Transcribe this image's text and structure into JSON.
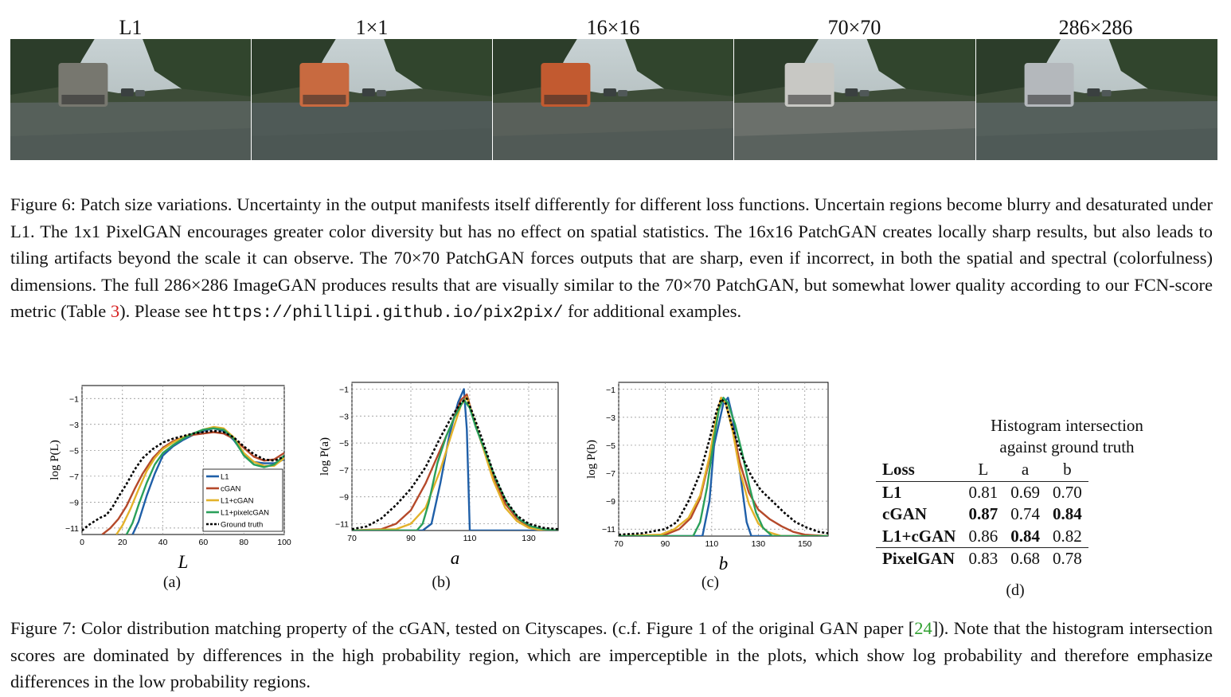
{
  "fig6": {
    "panels": [
      {
        "label": "L1",
        "tint": "#56605a",
        "truck": "#77776f"
      },
      {
        "label": "1×1",
        "tint": "#4f5a57",
        "truck": "#c86a40"
      },
      {
        "label": "16×16",
        "tint": "#59605a",
        "truck": "#c25a30"
      },
      {
        "label": "70×70",
        "tint": "#6b706b",
        "truck": "#c8c8c4"
      },
      {
        "label": "286×286",
        "tint": "#55605c",
        "truck": "#b4b8bc"
      }
    ],
    "caption_before_link": "Figure 6: Patch size variations. Uncertainty in the output manifests itself differently for different loss functions. Uncertain regions become blurry and desaturated under L1. The 1x1 PixelGAN encourages greater color diversity but has no effect on spatial statistics. The 16x16 PatchGAN creates locally sharp results, but also leads to tiling artifacts beyond the scale it can observe. The 70×70 PatchGAN forces outputs that are sharp, even if incorrect, in both the spatial and spectral (colorfulness) dimensions. The full 286×286 ImageGAN produces results that are visually similar to the 70×70 PatchGAN, but somewhat lower quality according to our FCN-score metric (Table ",
    "table_ref": "3",
    "caption_mid": "). Please see ",
    "link": "https://phillipi.github.io/pix2pix/",
    "caption_after_link": " for additional examples."
  },
  "chart_data": [
    {
      "type": "line",
      "sublabel": "(a)",
      "xlabel": "L",
      "ylabel": "log P(L)",
      "xlim": [
        0,
        100
      ],
      "ylim": [
        -11.5,
        0
      ],
      "xticks": [
        0,
        20,
        40,
        60,
        80,
        100
      ],
      "yticks": [
        -1,
        -3,
        -5,
        -7,
        -9,
        -11
      ],
      "grid": true,
      "legend_placement": "bottom-right",
      "legend": [
        "L1",
        "cGAN",
        "L1+cGAN",
        "L1+pixelcGAN",
        "Ground truth"
      ],
      "series": [
        {
          "name": "L1",
          "color": "#1f5fa8",
          "x": [
            25,
            28,
            32,
            36,
            40,
            45,
            50,
            55,
            60,
            65,
            70,
            75,
            80,
            85,
            90,
            95,
            100
          ],
          "y": [
            -11.5,
            -10.5,
            -8.5,
            -6.8,
            -5.4,
            -4.7,
            -4.2,
            -3.8,
            -3.5,
            -3.3,
            -3.5,
            -4.2,
            -5.3,
            -5.9,
            -6.0,
            -6.0,
            -5.7
          ]
        },
        {
          "name": "cGAN",
          "color": "#b5492a",
          "x": [
            10,
            14,
            18,
            22,
            26,
            30,
            35,
            40,
            45,
            50,
            55,
            60,
            65,
            70,
            75,
            80,
            85,
            90,
            95,
            100
          ],
          "y": [
            -11.5,
            -11.0,
            -10.3,
            -9.3,
            -8.0,
            -6.8,
            -5.6,
            -4.8,
            -4.3,
            -4.0,
            -3.8,
            -3.7,
            -3.6,
            -3.7,
            -4.1,
            -4.8,
            -5.5,
            -5.8,
            -5.7,
            -5.2
          ]
        },
        {
          "name": "L1+cGAN",
          "color": "#e3b22a",
          "x": [
            17,
            20,
            24,
            28,
            32,
            36,
            40,
            45,
            50,
            55,
            60,
            65,
            70,
            75,
            80,
            85,
            90,
            95,
            100
          ],
          "y": [
            -11.5,
            -10.8,
            -9.5,
            -8.0,
            -6.6,
            -5.6,
            -4.9,
            -4.4,
            -4.0,
            -3.7,
            -3.4,
            -3.2,
            -3.3,
            -4.0,
            -5.2,
            -5.9,
            -6.2,
            -6.2,
            -5.6
          ]
        },
        {
          "name": "L1+pixelcGAN",
          "color": "#2aa05a",
          "x": [
            22,
            25,
            28,
            32,
            36,
            40,
            45,
            50,
            55,
            60,
            65,
            70,
            75,
            80,
            85,
            90,
            95,
            100
          ],
          "y": [
            -11.5,
            -10.6,
            -9.2,
            -7.5,
            -6.1,
            -5.2,
            -4.6,
            -4.1,
            -3.7,
            -3.4,
            -3.3,
            -3.4,
            -4.1,
            -5.4,
            -6.1,
            -6.3,
            -6.1,
            -5.4
          ]
        },
        {
          "name": "Ground truth",
          "color": "#000000",
          "dashed": true,
          "x": [
            0,
            3,
            6,
            9,
            12,
            15,
            18,
            22,
            26,
            30,
            35,
            40,
            45,
            50,
            55,
            60,
            65,
            70,
            75,
            80,
            85,
            90,
            95,
            100
          ],
          "y": [
            -11.2,
            -10.8,
            -10.5,
            -10.2,
            -10.0,
            -9.4,
            -8.6,
            -7.6,
            -6.5,
            -5.6,
            -4.9,
            -4.4,
            -4.1,
            -3.9,
            -3.7,
            -3.6,
            -3.5,
            -3.6,
            -4.0,
            -4.7,
            -5.3,
            -5.7,
            -5.8,
            -5.5
          ]
        }
      ]
    },
    {
      "type": "line",
      "sublabel": "(b)",
      "xlabel": "a",
      "ylabel": "log P(a)",
      "xlim": [
        70,
        140
      ],
      "ylim": [
        -11.5,
        -0.5
      ],
      "xticks": [
        70,
        90,
        110,
        130
      ],
      "yticks": [
        -1,
        -3,
        -5,
        -7,
        -9,
        -11
      ],
      "grid": true,
      "series": [
        {
          "name": "L1",
          "color": "#1f5fa8",
          "x": [
            70,
            94,
            97,
            100,
            103,
            106,
            108,
            109,
            110,
            111,
            140
          ],
          "y": [
            -11.5,
            -11.5,
            -11.0,
            -8.0,
            -4.5,
            -2.0,
            -1.0,
            -4.0,
            -11.5,
            -11.5,
            -11.5
          ]
        },
        {
          "name": "cGAN",
          "color": "#b5492a",
          "x": [
            70,
            80,
            85,
            90,
            95,
            100,
            104,
            107,
            109,
            111,
            114,
            118,
            122,
            126,
            130,
            135,
            140
          ],
          "y": [
            -11.5,
            -11.4,
            -11.0,
            -10.0,
            -8.0,
            -5.5,
            -3.5,
            -1.8,
            -1.4,
            -3.0,
            -5.0,
            -7.5,
            -9.5,
            -10.6,
            -11.2,
            -11.4,
            -11.5
          ]
        },
        {
          "name": "L1+cGAN",
          "color": "#e3b22a",
          "x": [
            70,
            85,
            90,
            95,
            100,
            104,
            107,
            109,
            111,
            114,
            118,
            122,
            126,
            130,
            135,
            140
          ],
          "y": [
            -11.5,
            -11.4,
            -11.0,
            -9.8,
            -7.0,
            -4.2,
            -2.2,
            -1.6,
            -3.0,
            -5.0,
            -7.8,
            -9.8,
            -10.8,
            -11.3,
            -11.5,
            -11.5
          ]
        },
        {
          "name": "L1+pixelcGAN",
          "color": "#2aa05a",
          "x": [
            70,
            92,
            94,
            96,
            99,
            102,
            105,
            108,
            110,
            112,
            115,
            119,
            123,
            127,
            131,
            135,
            140
          ],
          "y": [
            -11.5,
            -11.5,
            -11.0,
            -9.5,
            -6.5,
            -4.5,
            -3.0,
            -1.8,
            -2.4,
            -3.8,
            -5.5,
            -7.8,
            -9.6,
            -10.7,
            -11.2,
            -11.4,
            -11.5
          ]
        },
        {
          "name": "Ground truth",
          "color": "#000000",
          "dashed": true,
          "x": [
            70,
            75,
            80,
            85,
            90,
            95,
            100,
            104,
            107,
            109,
            111,
            114,
            118,
            122,
            126,
            130,
            135,
            140
          ],
          "y": [
            -11.4,
            -11.2,
            -10.6,
            -9.6,
            -8.4,
            -6.8,
            -4.6,
            -3.0,
            -2.0,
            -1.7,
            -2.8,
            -4.6,
            -7.2,
            -9.2,
            -10.4,
            -11.0,
            -11.3,
            -11.4
          ]
        }
      ]
    },
    {
      "type": "line",
      "sublabel": "(c)",
      "xlabel": "b",
      "ylabel": "log P(b)",
      "xlim": [
        70,
        160
      ],
      "ylim": [
        -11.5,
        -0.5
      ],
      "xticks": [
        70,
        90,
        110,
        130,
        150
      ],
      "yticks": [
        -1,
        -3,
        -5,
        -7,
        -9,
        -11
      ],
      "grid": true,
      "series": [
        {
          "name": "L1",
          "color": "#1f5fa8",
          "x": [
            70,
            106,
            109,
            111,
            113,
            115,
            117,
            119,
            121,
            123,
            125,
            127,
            160
          ],
          "y": [
            -11.5,
            -11.5,
            -9.0,
            -5.0,
            -3.5,
            -2.0,
            -1.6,
            -3.0,
            -5.5,
            -8.0,
            -10.5,
            -11.5,
            -11.5
          ]
        },
        {
          "name": "cGAN",
          "color": "#b5492a",
          "x": [
            70,
            90,
            96,
            101,
            105,
            109,
            112,
            114,
            116,
            119,
            122,
            126,
            130,
            135,
            140,
            145,
            150,
            160
          ],
          "y": [
            -11.5,
            -11.4,
            -11.0,
            -10.2,
            -8.8,
            -6.0,
            -3.0,
            -1.6,
            -2.0,
            -3.8,
            -6.2,
            -8.4,
            -9.6,
            -10.3,
            -10.8,
            -11.2,
            -11.4,
            -11.5
          ]
        },
        {
          "name": "L1+cGAN",
          "color": "#e3b22a",
          "x": [
            70,
            88,
            94,
            100,
            105,
            109,
            112,
            114,
            116,
            119,
            122,
            126,
            130,
            134,
            140,
            160
          ],
          "y": [
            -11.5,
            -11.4,
            -11.0,
            -10.2,
            -8.6,
            -5.8,
            -3.0,
            -1.6,
            -2.0,
            -4.0,
            -6.8,
            -9.2,
            -10.6,
            -11.2,
            -11.5,
            -11.5
          ]
        },
        {
          "name": "L1+pixelcGAN",
          "color": "#2aa05a",
          "x": [
            70,
            102,
            105,
            108,
            111,
            113,
            115,
            117,
            120,
            123,
            126,
            129,
            132,
            136,
            160
          ],
          "y": [
            -11.5,
            -11.5,
            -10.5,
            -8.0,
            -4.5,
            -2.5,
            -1.6,
            -2.0,
            -3.5,
            -5.5,
            -7.8,
            -9.8,
            -10.9,
            -11.5,
            -11.5
          ]
        },
        {
          "name": "Ground truth",
          "color": "#000000",
          "dashed": true,
          "x": [
            70,
            80,
            90,
            95,
            100,
            105,
            109,
            112,
            114,
            116,
            119,
            123,
            127,
            131,
            136,
            141,
            146,
            151,
            156,
            160
          ],
          "y": [
            -11.4,
            -11.3,
            -11.0,
            -10.5,
            -9.0,
            -7.0,
            -4.6,
            -2.6,
            -1.7,
            -2.0,
            -3.8,
            -5.8,
            -7.2,
            -8.2,
            -9.0,
            -9.8,
            -10.5,
            -10.9,
            -11.2,
            -11.3
          ]
        }
      ]
    },
    {
      "type": "table",
      "sublabel": "(d)",
      "title_line1": "Histogram intersection",
      "title_line2": "against ground truth",
      "columns": [
        "Loss",
        "L",
        "a",
        "b"
      ],
      "rows": [
        {
          "loss": "L1",
          "L": "0.81",
          "a": "0.69",
          "b": "0.70",
          "bold": []
        },
        {
          "loss": "cGAN",
          "L": "0.87",
          "a": "0.74",
          "b": "0.84",
          "bold": [
            "L",
            "b"
          ]
        },
        {
          "loss": "L1+cGAN",
          "L": "0.86",
          "a": "0.84",
          "b": "0.82",
          "bold": [
            "a"
          ]
        },
        {
          "loss": "PixelGAN",
          "L": "0.83",
          "a": "0.68",
          "b": "0.78",
          "bold": []
        }
      ]
    }
  ],
  "fig7": {
    "caption_before_ref": "Figure 7: Color distribution matching property of the cGAN, tested on Cityscapes. (c.f. Figure 1 of the original GAN paper [",
    "ref": "24",
    "caption_after_ref": "]). Note that the histogram intersection scores are dominated by differences in the high probability region, which are imperceptible in the plots, which show log probability and therefore emphasize differences in the low probability regions."
  }
}
